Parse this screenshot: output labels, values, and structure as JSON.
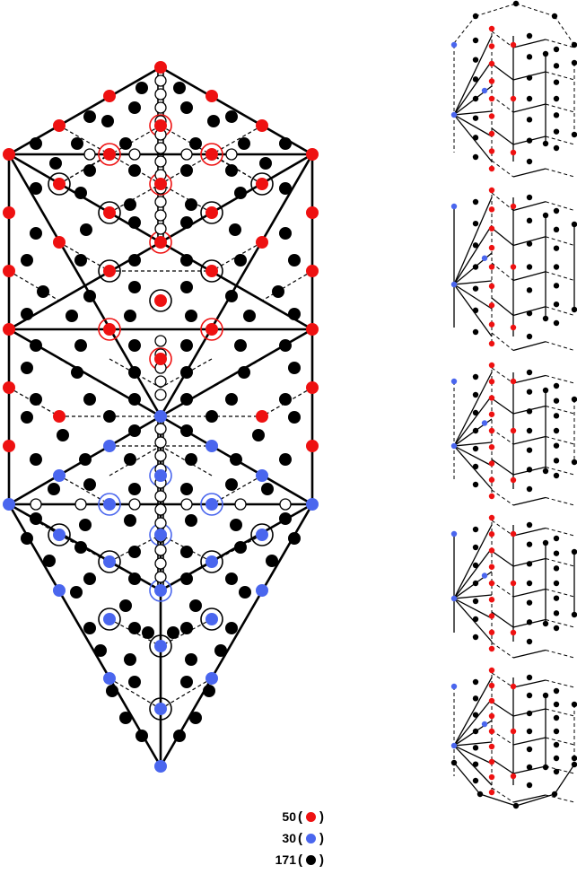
{
  "colors": {
    "red": "#ee1111",
    "blue": "#4a66ee",
    "black": "#000000",
    "line": "#000000"
  },
  "legend": [
    {
      "count": "50",
      "open": "(",
      "close": ")",
      "color_key": "red"
    },
    {
      "count": "30",
      "open": "(",
      "close": ")",
      "color_key": "blue"
    },
    {
      "count": "171",
      "open": "(",
      "close": ")",
      "color_key": "black"
    }
  ]
}
